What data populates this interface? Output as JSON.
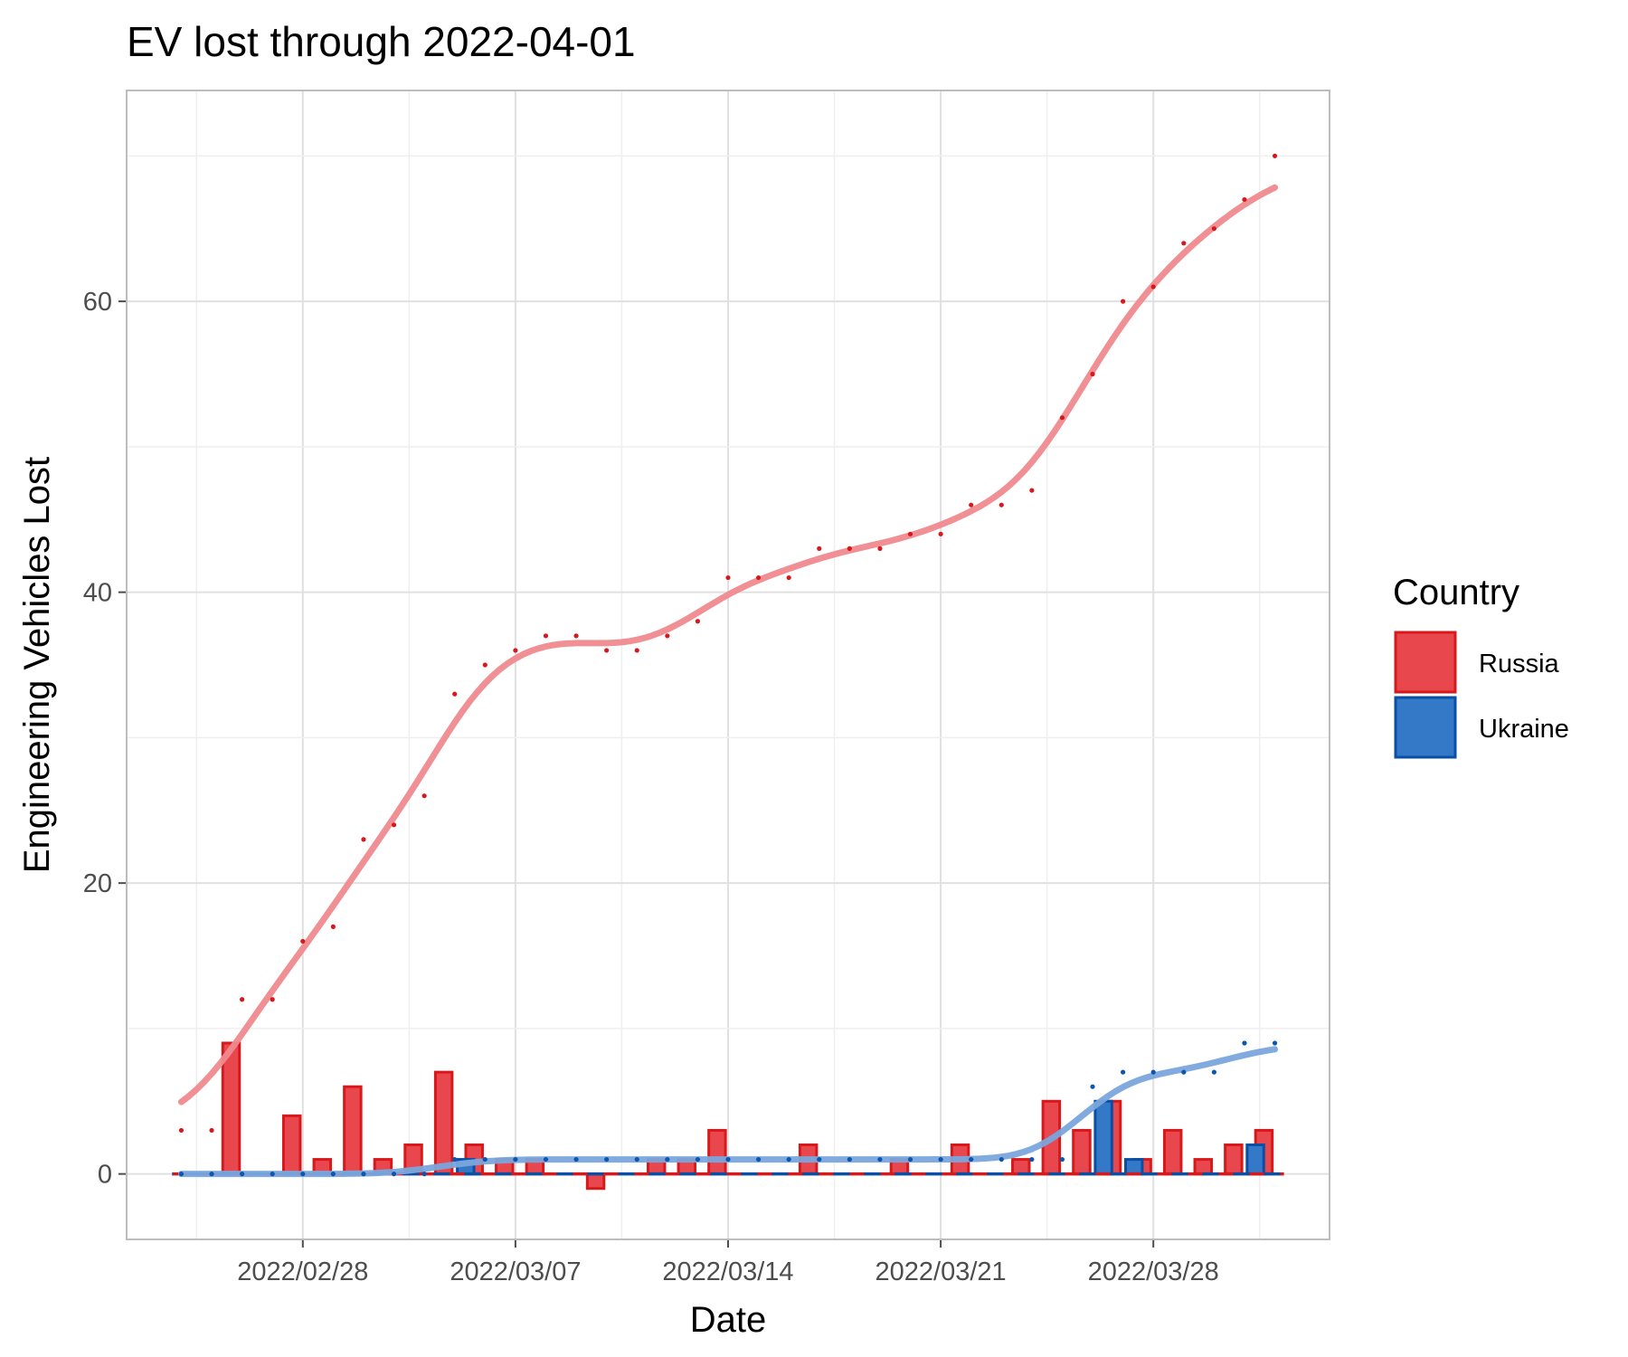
{
  "chart_data": {
    "type": "bar",
    "title": "EV lost through 2022-04-01",
    "xlabel": "Date",
    "ylabel": "Engineering Vehicles Lost",
    "x_ticks": [
      "2022/02/28",
      "2022/03/07",
      "2022/03/14",
      "2022/03/21",
      "2022/03/28"
    ],
    "y_ticks": [
      "0",
      "20",
      "40",
      "60"
    ],
    "ylim": [
      -4.5,
      74.5
    ],
    "grid": true,
    "legend": {
      "title": "Country",
      "position": "right",
      "entries": [
        {
          "name": "Russia",
          "color": "#e8474d",
          "border": "#d7191c"
        },
        {
          "name": "Ukraine",
          "color": "#3478c8",
          "border": "#0a4fa6"
        }
      ]
    },
    "dates": [
      "2022-02-24",
      "2022-02-25",
      "2022-02-26",
      "2022-02-27",
      "2022-02-28",
      "2022-03-01",
      "2022-03-02",
      "2022-03-03",
      "2022-03-04",
      "2022-03-05",
      "2022-03-06",
      "2022-03-07",
      "2022-03-08",
      "2022-03-09",
      "2022-03-10",
      "2022-03-11",
      "2022-03-12",
      "2022-03-13",
      "2022-03-14",
      "2022-03-15",
      "2022-03-16",
      "2022-03-17",
      "2022-03-18",
      "2022-03-19",
      "2022-03-20",
      "2022-03-21",
      "2022-03-22",
      "2022-03-23",
      "2022-03-24",
      "2022-03-25",
      "2022-03-26",
      "2022-03-27",
      "2022-03-28",
      "2022-03-29",
      "2022-03-30",
      "2022-03-31",
      "2022-04-01"
    ],
    "series": [
      {
        "name": "Russia",
        "color": "#e8474d",
        "cumulative": [
          3,
          3,
          12,
          12,
          16,
          17,
          23,
          24,
          26,
          33,
          35,
          36,
          37,
          37,
          36,
          36,
          37,
          38,
          41,
          41,
          41,
          43,
          43,
          43,
          44,
          44,
          46,
          46,
          47,
          52,
          55,
          60,
          61,
          64,
          65,
          67,
          70
        ],
        "daily": [
          0,
          0,
          9,
          0,
          4,
          1,
          6,
          1,
          2,
          7,
          2,
          1,
          1,
          0,
          -1,
          0,
          1,
          1,
          3,
          0,
          0,
          2,
          0,
          0,
          1,
          0,
          2,
          0,
          1,
          5,
          3,
          5,
          1,
          3,
          1,
          2,
          3
        ]
      },
      {
        "name": "Ukraine",
        "color": "#3478c8",
        "cumulative": [
          0,
          0,
          0,
          0,
          0,
          0,
          0,
          0,
          0,
          1,
          1,
          1,
          1,
          1,
          1,
          1,
          1,
          1,
          1,
          1,
          1,
          1,
          1,
          1,
          1,
          1,
          1,
          1,
          1,
          1,
          6,
          7,
          7,
          7,
          7,
          9,
          9
        ],
        "daily": [
          0,
          0,
          0,
          0,
          0,
          0,
          0,
          0,
          0,
          1,
          0,
          0,
          0,
          0,
          0,
          0,
          0,
          0,
          0,
          0,
          0,
          0,
          0,
          0,
          0,
          0,
          0,
          0,
          0,
          0,
          5,
          1,
          0,
          0,
          0,
          2,
          0
        ]
      }
    ]
  }
}
